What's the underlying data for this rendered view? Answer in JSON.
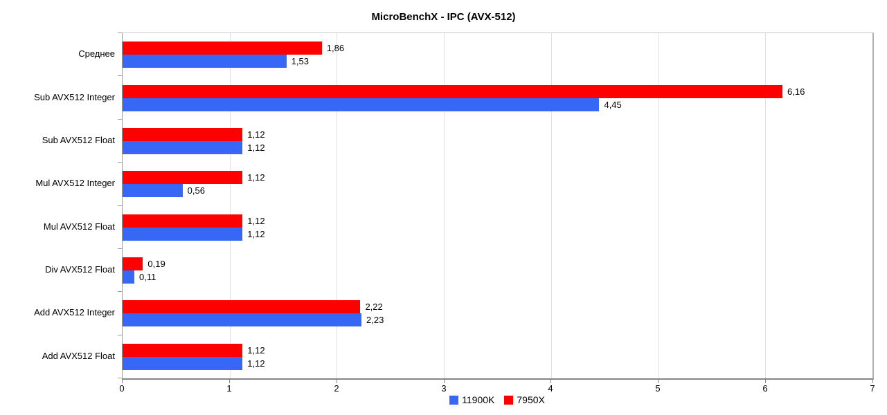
{
  "chart_data": {
    "type": "bar",
    "orientation": "horizontal",
    "title": "MicroBenchX - IPC (AVX-512)",
    "categories": [
      "Среднее",
      "Sub AVX512 Integer",
      "Sub AVX512 Float",
      "Mul AVX512 Integer",
      "Mul AVX512 Float",
      "Div AVX512 Float",
      "Add AVX512 Integer",
      "Add AVX512 Float"
    ],
    "series": [
      {
        "name": "7950X",
        "color": "#ff0000",
        "values": [
          1.86,
          6.16,
          1.12,
          1.12,
          1.12,
          0.19,
          2.22,
          1.12
        ],
        "labels": [
          "1,86",
          "6,16",
          "1,12",
          "1,12",
          "1,12",
          "0,19",
          "2,22",
          "1,12"
        ]
      },
      {
        "name": "11900K",
        "color": "#3767f5",
        "values": [
          1.53,
          4.45,
          1.12,
          0.56,
          1.12,
          0.11,
          2.23,
          1.12
        ],
        "labels": [
          "1,53",
          "4,45",
          "1,12",
          "0,56",
          "1,12",
          "0,11",
          "2,23",
          "1,12"
        ]
      }
    ],
    "legend": [
      {
        "name": "11900K",
        "color": "#3767f5"
      },
      {
        "name": "7950X",
        "color": "#ff0000"
      }
    ],
    "xlim": [
      0,
      7
    ],
    "x_ticks": [
      "0",
      "1",
      "2",
      "3",
      "4",
      "5",
      "6",
      "7"
    ],
    "grid": true,
    "legend_position": "bottom",
    "colors": {
      "gridline": "#e0e0e0",
      "axis": "#858585",
      "text": "#000000"
    }
  }
}
